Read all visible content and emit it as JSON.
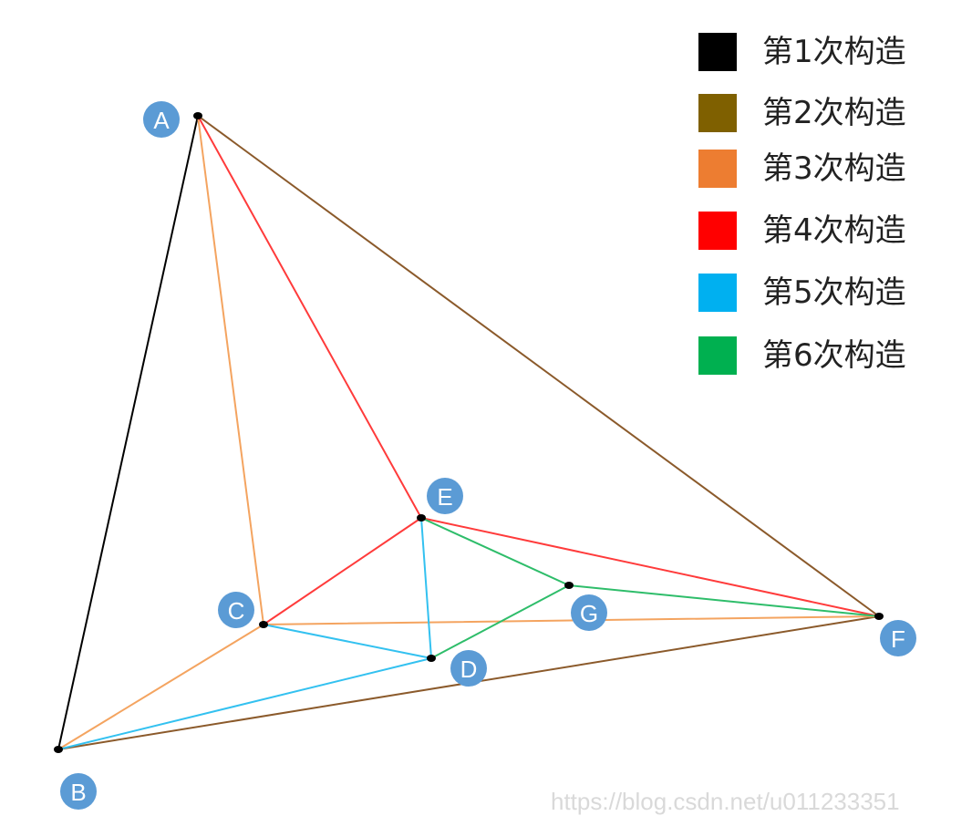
{
  "legend": [
    {
      "label": "第1次构造",
      "color": "#000000"
    },
    {
      "label": "第2次构造",
      "color": "#7f6000"
    },
    {
      "label": "第3次构造",
      "color": "#ed7d31"
    },
    {
      "label": "第4次构造",
      "color": "#ff0000"
    },
    {
      "label": "第5次构造",
      "color": "#00b0f0"
    },
    {
      "label": "第6次构造",
      "color": "#00b050"
    }
  ],
  "nodes": [
    {
      "id": "A",
      "label": "A"
    },
    {
      "id": "B",
      "label": "B"
    },
    {
      "id": "C",
      "label": "C"
    },
    {
      "id": "D",
      "label": "D"
    },
    {
      "id": "E",
      "label": "E"
    },
    {
      "id": "F",
      "label": "F"
    },
    {
      "id": "G",
      "label": "G"
    }
  ],
  "edges": [
    {
      "from": "A",
      "to": "B",
      "step": 1
    },
    {
      "from": "A",
      "to": "F",
      "step": 2
    },
    {
      "from": "B",
      "to": "F",
      "step": 2
    },
    {
      "from": "A",
      "to": "C",
      "step": 3
    },
    {
      "from": "B",
      "to": "C",
      "step": 3
    },
    {
      "from": "C",
      "to": "F",
      "step": 3
    },
    {
      "from": "A",
      "to": "E",
      "step": 4
    },
    {
      "from": "C",
      "to": "E",
      "step": 4
    },
    {
      "from": "E",
      "to": "F",
      "step": 4
    },
    {
      "from": "C",
      "to": "D",
      "step": 5
    },
    {
      "from": "B",
      "to": "D",
      "step": 5
    },
    {
      "from": "E",
      "to": "D",
      "step": 5
    },
    {
      "from": "E",
      "to": "G",
      "step": 6
    },
    {
      "from": "D",
      "to": "G",
      "step": 6
    },
    {
      "from": "G",
      "to": "F",
      "step": 6
    }
  ],
  "style": {
    "node_badge_color": "#5b9bd5",
    "node_dot_color": "#000000",
    "edge_colors": {
      "1": "#000000",
      "2": "#8b5a2b",
      "3": "#f4a460",
      "4": "#ff3b3b",
      "5": "#33c1f0",
      "6": "#2ebd6a"
    }
  },
  "watermark": "https://blog.csdn.net/u011233351"
}
